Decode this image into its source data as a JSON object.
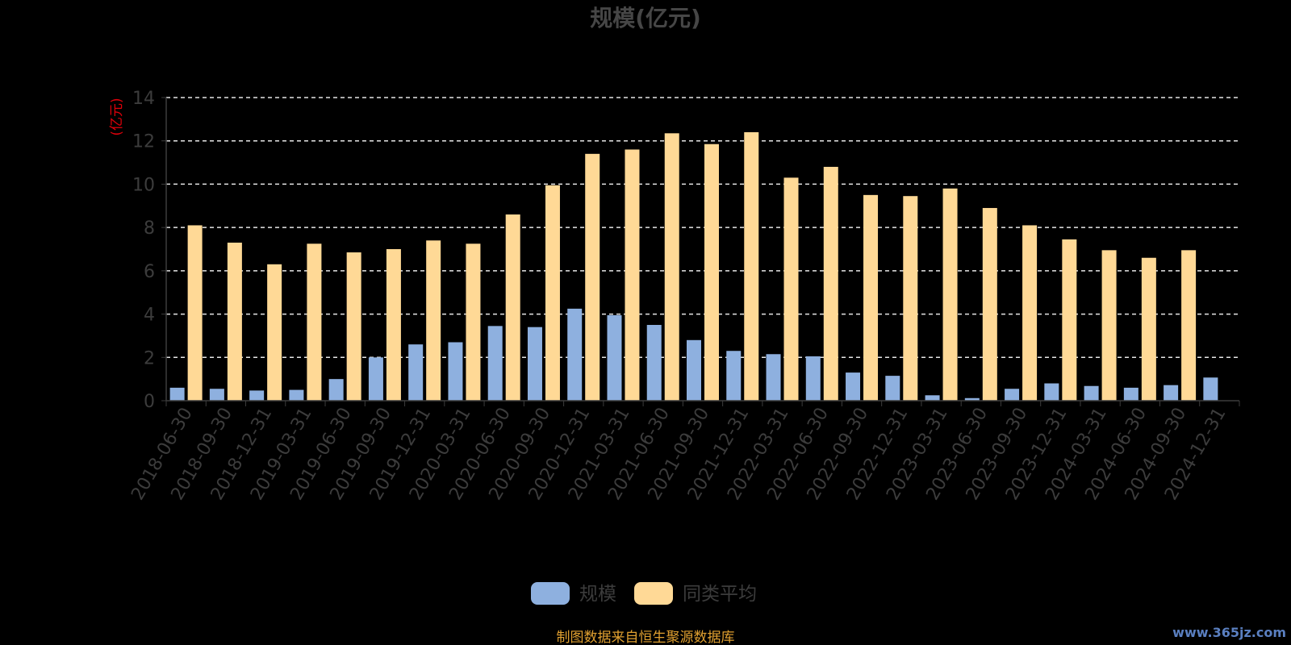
{
  "chart_data": {
    "type": "bar",
    "title": "规模(亿元)",
    "ylabel": "(亿元)",
    "xlabel": "",
    "ylim": [
      0,
      14
    ],
    "yticks": [
      0,
      2,
      4,
      6,
      8,
      10,
      12,
      14
    ],
    "grid": true,
    "legend_position": "bottom-center",
    "categories": [
      "2018-06-30",
      "2018-09-30",
      "2018-12-31",
      "2019-03-31",
      "2019-06-30",
      "2019-09-30",
      "2019-12-31",
      "2020-03-31",
      "2020-06-30",
      "2020-09-30",
      "2020-12-31",
      "2021-03-31",
      "2021-06-30",
      "2021-09-30",
      "2021-12-31",
      "2022-03-31",
      "2022-06-30",
      "2022-09-30",
      "2022-12-31",
      "2023-03-31",
      "2023-06-30",
      "2023-09-30",
      "2023-12-31",
      "2024-03-31",
      "2024-06-30",
      "2024-09-30",
      "2024-12-31"
    ],
    "series": [
      {
        "name": "规模",
        "color": "#8eb0df",
        "values": [
          0.6,
          0.55,
          0.47,
          0.5,
          1.0,
          2.0,
          2.6,
          2.7,
          3.45,
          3.4,
          4.25,
          3.95,
          3.5,
          2.8,
          2.3,
          2.15,
          2.05,
          1.3,
          1.15,
          0.25,
          0.12,
          0.55,
          0.8,
          0.68,
          0.6,
          0.72,
          1.07
        ]
      },
      {
        "name": "同类平均",
        "color": "#ffd996",
        "values": [
          8.1,
          7.3,
          6.3,
          7.25,
          6.85,
          7.0,
          7.4,
          7.25,
          8.6,
          9.95,
          11.4,
          11.6,
          12.35,
          11.85,
          12.4,
          10.3,
          10.8,
          9.5,
          9.45,
          9.8,
          8.9,
          8.1,
          7.45,
          6.95,
          6.6,
          6.95,
          null
        ]
      }
    ]
  },
  "footer": {
    "source_text": "制图数据来自恒生聚源数据库",
    "watermark": "www.365jz.com"
  },
  "colors": {
    "background": "#000000",
    "axis_text": "#3c3c3c",
    "title": "#464646",
    "unit_label": "#e0000a",
    "grid": "#e6e6e6",
    "source": "#e0a030",
    "watermark": "#5a7fc0"
  }
}
